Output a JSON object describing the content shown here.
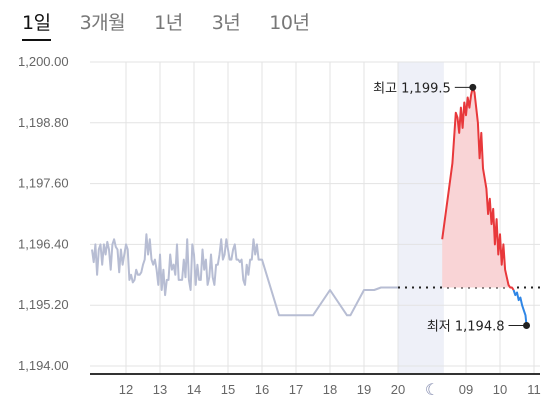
{
  "tabs": [
    {
      "label": "1일",
      "active": true
    },
    {
      "label": "3개월",
      "active": false
    },
    {
      "label": "1년",
      "active": false
    },
    {
      "label": "3년",
      "active": false
    },
    {
      "label": "10년",
      "active": false
    }
  ],
  "chart_data": {
    "type": "line",
    "ylim": [
      1194.0,
      1200.0
    ],
    "y_ticks": [
      "1,200.00",
      "1,198.80",
      "1,197.60",
      "1,196.40",
      "1,195.20",
      "1,194.00"
    ],
    "y_tick_values": [
      1200.0,
      1198.8,
      1197.6,
      1196.4,
      1195.2,
      1194.0
    ],
    "x_ticks": [
      "12",
      "13",
      "14",
      "15",
      "16",
      "17",
      "18",
      "19",
      "20",
      "09",
      "10",
      "11"
    ],
    "night_marker": "moon-icon",
    "grid": true,
    "reference_line": 1195.55,
    "colors": {
      "history": "#b7bdd3",
      "up": "#e8383b",
      "up_fill": "#f9d4d6",
      "down": "#2f86e6",
      "night_band": "#eef0f8",
      "grid": "#e3e3e3",
      "axis": "#333333"
    },
    "history_series": {
      "name": "",
      "x": [
        0,
        0.05,
        0.1,
        0.15,
        0.2,
        0.25,
        0.3,
        0.35,
        0.4,
        0.45,
        0.5,
        0.55,
        0.6,
        0.65,
        0.7,
        0.75,
        0.8,
        0.85,
        0.9,
        0.95,
        1.0,
        1.05,
        1.1,
        1.15,
        1.2,
        1.25,
        1.3,
        1.35,
        1.4,
        1.45,
        1.5,
        1.55,
        1.6,
        1.65,
        1.7,
        1.75,
        1.8,
        1.85,
        1.9,
        1.95,
        2.0,
        2.05,
        2.1,
        2.15,
        2.2,
        2.25,
        2.3,
        2.35,
        2.4,
        2.45,
        2.5,
        2.55,
        2.6,
        2.65,
        2.7,
        2.75,
        2.8,
        2.85,
        2.9,
        2.95,
        3.0,
        3.05,
        3.1,
        3.15,
        3.2,
        3.25,
        3.3,
        3.35,
        3.4,
        3.45,
        3.5,
        3.55,
        3.6,
        3.65,
        3.7,
        3.75,
        3.8,
        3.85,
        3.9,
        3.95,
        4.0,
        4.05,
        4.1,
        4.15,
        4.2,
        4.25,
        4.3,
        4.35,
        4.4,
        4.45,
        4.5,
        4.55,
        4.6,
        4.65,
        4.7,
        4.75,
        4.8,
        4.85,
        4.9,
        4.95,
        5.0,
        5.5,
        6.0,
        6.5,
        7.0,
        7.5,
        7.6,
        8.0,
        8.3,
        8.5,
        9.0
      ],
      "values": [
        1196.3,
        1196.05,
        1196.4,
        1195.8,
        1196.3,
        1196.4,
        1196.0,
        1196.4,
        1196.2,
        1196.45,
        1196.3,
        1195.9,
        1196.4,
        1196.5,
        1196.35,
        1196.3,
        1195.85,
        1196.3,
        1196.0,
        1196.2,
        1196.4,
        1196.3,
        1195.7,
        1195.8,
        1195.65,
        1195.7,
        1195.9,
        1195.8,
        1195.8,
        1195.85,
        1196.0,
        1196.1,
        1196.6,
        1196.2,
        1196.5,
        1196.1,
        1196.0,
        1196.1,
        1195.9,
        1195.6,
        1196.2,
        1195.5,
        1195.9,
        1195.4,
        1195.7,
        1195.7,
        1196.2,
        1195.9,
        1196.0,
        1195.8,
        1196.4,
        1195.7,
        1195.7,
        1195.7,
        1196.1,
        1195.75,
        1196.5,
        1195.7,
        1195.5,
        1196.4,
        1196.2,
        1195.6,
        1196.0,
        1195.7,
        1195.7,
        1196.3,
        1195.9,
        1196.1,
        1195.6,
        1195.75,
        1196.2,
        1195.75,
        1195.6,
        1196.0,
        1196.0,
        1196.2,
        1196.5,
        1196.1,
        1196.2,
        1196.5,
        1196.3,
        1196.1,
        1196.1,
        1196.3,
        1196.4,
        1196.1,
        1196.1,
        1196.05,
        1196.1,
        1195.7,
        1195.6,
        1196.0,
        1195.8,
        1196.1,
        1196.1,
        1196.5,
        1196.2,
        1196.4,
        1196.1,
        1196.1,
        1196.1,
        1195.0,
        1195.0,
        1195.0,
        1195.5,
        1195.0,
        1195.0,
        1195.5,
        1195.5,
        1195.55,
        1195.55
      ]
    },
    "today_series": {
      "name": "",
      "x": [
        10.3,
        10.4,
        10.5,
        10.6,
        10.7,
        10.75,
        10.8,
        10.85,
        10.9,
        10.95,
        11.0,
        11.05,
        11.1,
        11.15,
        11.2,
        11.25,
        11.3,
        11.35,
        11.4,
        11.45,
        11.5,
        11.55,
        11.6,
        11.65,
        11.7,
        11.75,
        11.8,
        11.85,
        11.9,
        11.95,
        12.0,
        12.05,
        12.1,
        12.15,
        12.2,
        12.25,
        12.3,
        12.35,
        12.4,
        12.45,
        12.5,
        12.55,
        12.6,
        12.65,
        12.7,
        12.75,
        12.78
      ],
      "values": [
        1196.5,
        1197.0,
        1197.5,
        1198.0,
        1199.0,
        1198.9,
        1198.6,
        1199.1,
        1198.7,
        1199.2,
        1198.95,
        1199.3,
        1199.1,
        1199.35,
        1199.5,
        1199.4,
        1199.1,
        1198.8,
        1198.1,
        1198.6,
        1197.9,
        1197.7,
        1197.5,
        1197.0,
        1197.3,
        1196.8,
        1197.1,
        1196.4,
        1196.9,
        1196.2,
        1196.6,
        1196.0,
        1196.4,
        1195.9,
        1195.75,
        1195.6,
        1195.55,
        1195.55,
        1195.5,
        1195.4,
        1195.45,
        1195.3,
        1195.35,
        1195.2,
        1195.1,
        1195.0,
        1194.8
      ]
    },
    "annotations": {
      "high_label": "최고 1,199.5",
      "high_value": 1199.5,
      "low_label": "최저 1,194.8",
      "low_value": 1194.8
    }
  }
}
